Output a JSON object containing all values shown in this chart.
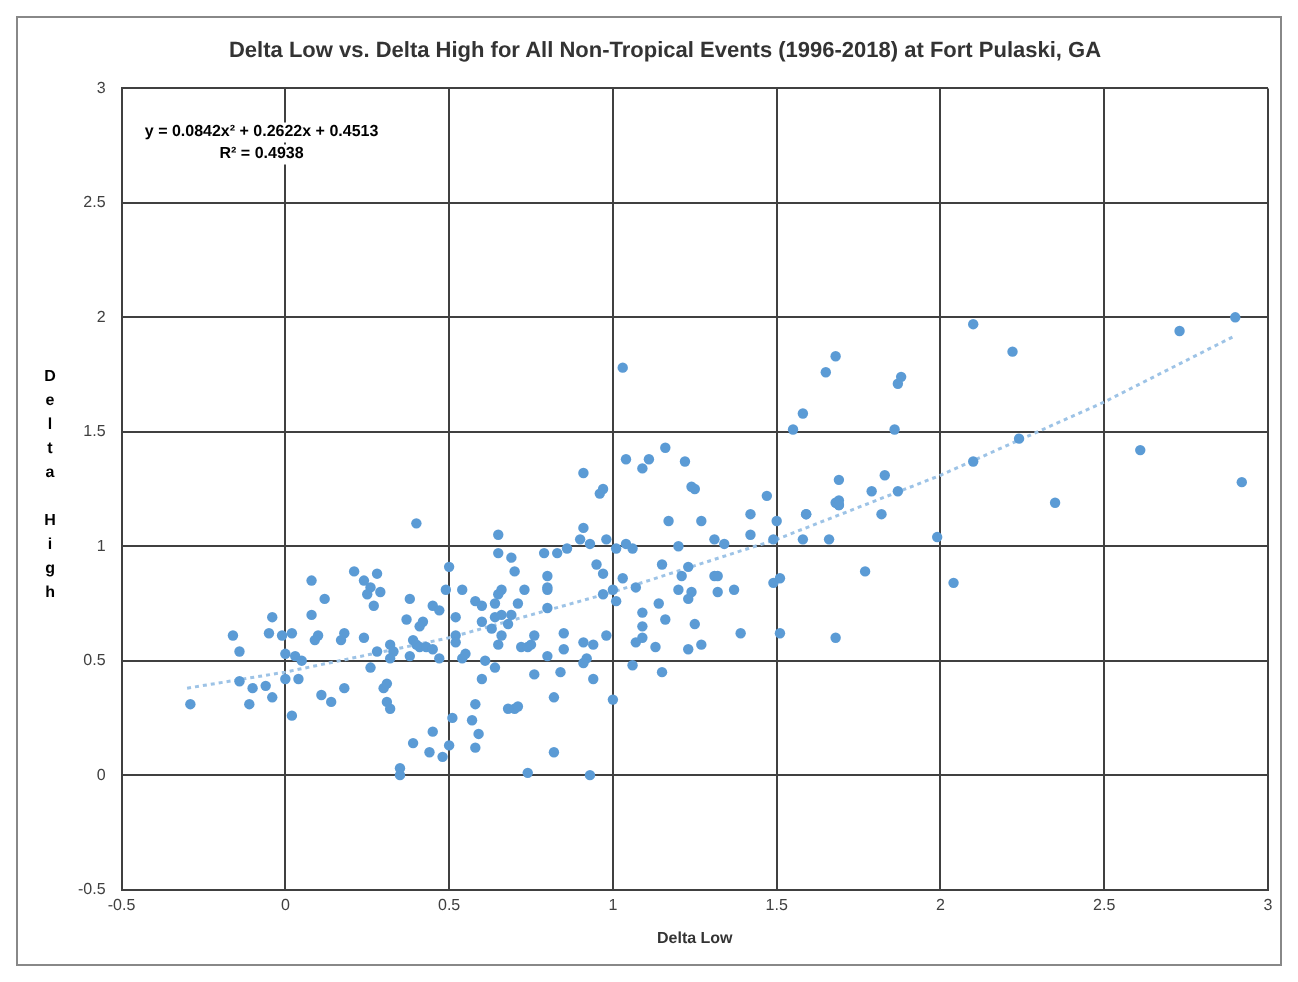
{
  "chart_data": {
    "type": "scatter",
    "title": "Delta Low vs. Delta High for All Non-Tropical Events (1996-2018) at Fort Pulaski, GA",
    "xlabel": "Delta Low",
    "ylabel": "Delta High",
    "annotations": [
      "y = 0.0842x² + 0.2622x + 0.4513",
      "R² = 0.4938"
    ],
    "marker": "circle",
    "grid": true,
    "xlim": [
      -0.5,
      3
    ],
    "ylim": [
      -0.5,
      3
    ],
    "xticks": [
      -0.5,
      0,
      0.5,
      1,
      1.5,
      2,
      2.5,
      3
    ],
    "yticks": [
      -0.5,
      0,
      0.5,
      1,
      1.5,
      2,
      2.5,
      3
    ],
    "series": [
      {
        "type": "scatter",
        "color": "#5b9bd5",
        "x": [
          0.4,
          0.65,
          0.65,
          0.69,
          0.21,
          0.28,
          0.5,
          0.08,
          0.24,
          0.26,
          0.29,
          0.25,
          0.12,
          0.38,
          0.49,
          0.54,
          0.66,
          0.65,
          0.27,
          0.45,
          0.47,
          0.58,
          0.6,
          0.64,
          0.08,
          -0.04,
          0.37,
          0.52,
          0.64,
          0.66,
          0.69,
          0.42,
          0.41,
          0.6,
          0.68,
          0.63,
          -0.16,
          -0.05,
          -0.01,
          0.02,
          0.1,
          0.09,
          0.18,
          0.17,
          0.24,
          0.52,
          0.52,
          0.66,
          0.65,
          0.39,
          0.4,
          0.41,
          0.43,
          0.45,
          0.32,
          0.33,
          0.28,
          -0.14,
          0.0,
          0.03,
          0.05,
          0.32,
          0.38,
          0.47,
          0.54,
          0.55,
          0.61,
          0.26,
          0.64,
          -0.14,
          0.0,
          0.04,
          -0.1,
          -0.06,
          -0.29,
          -0.11,
          -0.04,
          0.11,
          0.14,
          0.18,
          0.3,
          0.31,
          0.31,
          0.32,
          0.6,
          0.02,
          0.58,
          0.51,
          0.57,
          0.68,
          0.45,
          0.59,
          0.39,
          0.44,
          0.48,
          0.5,
          0.58,
          0.35,
          0.35,
          0.74,
          0.93,
          0.82,
          0.97,
          1.25,
          1.47,
          1.69,
          1.69,
          1.17,
          1.27,
          1.42,
          1.5,
          1.59,
          0.91,
          1.42,
          0.9,
          0.93,
          0.98,
          1.04,
          1.01,
          1.06,
          1.2,
          1.31,
          1.34,
          1.49,
          1.58,
          1.66,
          0.79,
          0.83,
          0.86,
          0.7,
          0.95,
          1.15,
          1.23,
          0.97,
          1.03,
          0.8,
          1.21,
          1.31,
          1.32,
          0.8,
          0.8,
          0.73,
          0.97,
          1.0,
          1.07,
          1.2,
          1.24,
          1.23,
          1.32,
          1.37,
          1.49,
          1.51,
          1.01,
          0.8,
          0.71,
          1.14,
          1.09,
          1.09,
          1.16,
          1.25,
          0.85,
          0.76,
          0.98,
          1.09,
          1.07,
          0.91,
          0.94,
          0.72,
          0.74,
          0.75,
          0.85,
          0.8,
          0.92,
          0.91,
          1.13,
          1.23,
          1.27,
          1.39,
          1.51,
          1.68,
          1.06,
          1.15,
          0.76,
          0.84,
          0.94,
          0.82,
          1.0,
          0.7,
          0.71,
          1.03,
          0.91,
          1.04,
          1.09,
          1.11,
          1.16,
          1.22,
          0.96,
          1.24,
          2.1,
          2.22,
          2.73,
          2.9,
          1.68,
          1.65,
          1.88,
          1.87,
          1.58,
          1.55,
          1.86,
          2.24,
          2.61,
          2.1,
          2.92,
          2.35,
          1.83,
          1.69,
          1.79,
          1.87,
          1.68,
          1.69,
          1.59,
          1.82,
          1.99,
          1.77,
          2.04
        ],
        "values": [
          1.1,
          1.05,
          0.97,
          0.95,
          0.89,
          0.88,
          0.91,
          0.85,
          0.85,
          0.82,
          0.8,
          0.79,
          0.77,
          0.77,
          0.81,
          0.81,
          0.81,
          0.79,
          0.74,
          0.74,
          0.72,
          0.76,
          0.74,
          0.75,
          0.7,
          0.69,
          0.68,
          0.69,
          0.69,
          0.7,
          0.7,
          0.67,
          0.65,
          0.67,
          0.66,
          0.64,
          0.61,
          0.62,
          0.61,
          0.62,
          0.61,
          0.59,
          0.62,
          0.59,
          0.6,
          0.61,
          0.58,
          0.61,
          0.57,
          0.59,
          0.57,
          0.56,
          0.56,
          0.55,
          0.57,
          0.54,
          0.54,
          0.54,
          0.53,
          0.52,
          0.5,
          0.51,
          0.52,
          0.51,
          0.51,
          0.53,
          0.5,
          0.47,
          0.47,
          0.41,
          0.42,
          0.42,
          0.38,
          0.39,
          0.31,
          0.31,
          0.34,
          0.35,
          0.32,
          0.38,
          0.38,
          0.4,
          0.32,
          0.29,
          0.42,
          0.26,
          0.31,
          0.25,
          0.24,
          0.29,
          0.19,
          0.18,
          0.14,
          0.1,
          0.08,
          0.13,
          0.12,
          0.03,
          0.0,
          0.01,
          0.0,
          0.1,
          1.25,
          1.25,
          1.22,
          1.2,
          1.18,
          1.11,
          1.11,
          1.14,
          1.11,
          1.14,
          1.08,
          1.05,
          1.03,
          1.01,
          1.03,
          1.01,
          0.99,
          0.99,
          1.0,
          1.03,
          1.01,
          1.03,
          1.03,
          1.03,
          0.97,
          0.97,
          0.99,
          0.89,
          0.92,
          0.92,
          0.91,
          0.88,
          0.86,
          0.87,
          0.87,
          0.87,
          0.87,
          0.82,
          0.81,
          0.81,
          0.79,
          0.81,
          0.82,
          0.81,
          0.8,
          0.77,
          0.8,
          0.81,
          0.84,
          0.86,
          0.76,
          0.73,
          0.75,
          0.75,
          0.71,
          0.65,
          0.68,
          0.66,
          0.62,
          0.61,
          0.61,
          0.6,
          0.58,
          0.58,
          0.57,
          0.56,
          0.56,
          0.57,
          0.55,
          0.52,
          0.51,
          0.49,
          0.56,
          0.55,
          0.57,
          0.62,
          0.62,
          0.6,
          0.48,
          0.45,
          0.44,
          0.45,
          0.42,
          0.34,
          0.33,
          0.29,
          0.3,
          1.78,
          1.32,
          1.38,
          1.34,
          1.38,
          1.43,
          1.37,
          1.23,
          1.26,
          1.97,
          1.85,
          1.94,
          2.0,
          1.83,
          1.76,
          1.74,
          1.71,
          1.58,
          1.51,
          1.51,
          1.47,
          1.42,
          1.37,
          1.28,
          1.19,
          1.31,
          1.29,
          1.24,
          1.24,
          1.19,
          1.18,
          1.14,
          1.14,
          1.04,
          0.89,
          0.84
        ]
      },
      {
        "type": "line",
        "color": "#9dc3e6",
        "line_style": "dotted",
        "marker": "none",
        "x": [
          -0.3,
          0,
          0.5,
          1,
          1.5,
          2,
          2.5,
          2.9
        ],
        "values": [
          0.38,
          0.45,
          0.6,
          0.8,
          1.03,
          1.31,
          1.63,
          1.92
        ]
      }
    ]
  }
}
